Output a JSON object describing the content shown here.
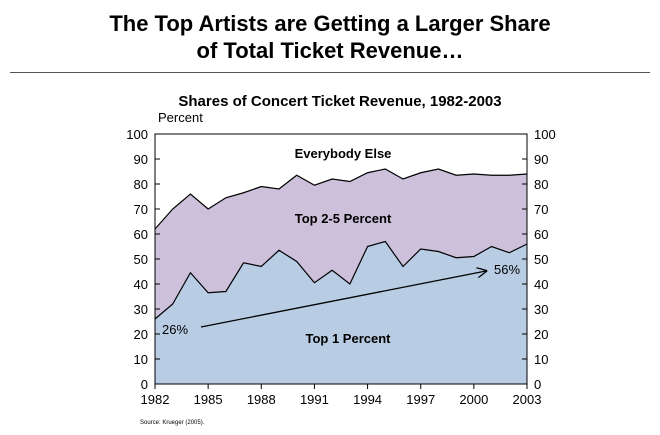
{
  "slide_title_line1": "The Top Artists are Getting a Larger Share",
  "slide_title_line2": "of Total Ticket Revenue…",
  "source": "Source: Krueger (2005).",
  "chart_data": {
    "type": "area",
    "title": "Shares of Concert Ticket Revenue, 1982-2003",
    "ylabel": "Percent",
    "xlabel": "",
    "ylim": [
      0,
      100
    ],
    "xlim": [
      1982,
      2003
    ],
    "x_ticks": [
      "1982",
      "1985",
      "1988",
      "1991",
      "1994",
      "1997",
      "2000",
      "2003"
    ],
    "y_ticks": [
      "0",
      "10",
      "20",
      "30",
      "40",
      "50",
      "60",
      "70",
      "80",
      "90",
      "100"
    ],
    "x": [
      1982,
      1983,
      1984,
      1985,
      1986,
      1987,
      1988,
      1989,
      1990,
      1991,
      1992,
      1993,
      1994,
      1995,
      1996,
      1997,
      1998,
      1999,
      2000,
      2001,
      2002,
      2003
    ],
    "series": [
      {
        "name": "Top 1 Percent",
        "color": "#b8cce4",
        "values": [
          26,
          32,
          44.5,
          36.5,
          37,
          48.5,
          47,
          53.5,
          49,
          40.5,
          45.5,
          40,
          55,
          57,
          47,
          54,
          53,
          50.5,
          51,
          55,
          52.5,
          56
        ]
      },
      {
        "name": "Top 2-5 Percent",
        "color": "#ccc0da",
        "cumulative_values": [
          62,
          70,
          76,
          70,
          74.5,
          76.5,
          79,
          78,
          83.5,
          79.5,
          82,
          81,
          84.5,
          86,
          82,
          84.5,
          86,
          83.5,
          84,
          83.5,
          83.5,
          84
        ]
      },
      {
        "name": "Everybody Else",
        "color": "#ffffff"
      }
    ],
    "annotations": {
      "start": "26%",
      "end": "56%"
    },
    "grid": false
  }
}
